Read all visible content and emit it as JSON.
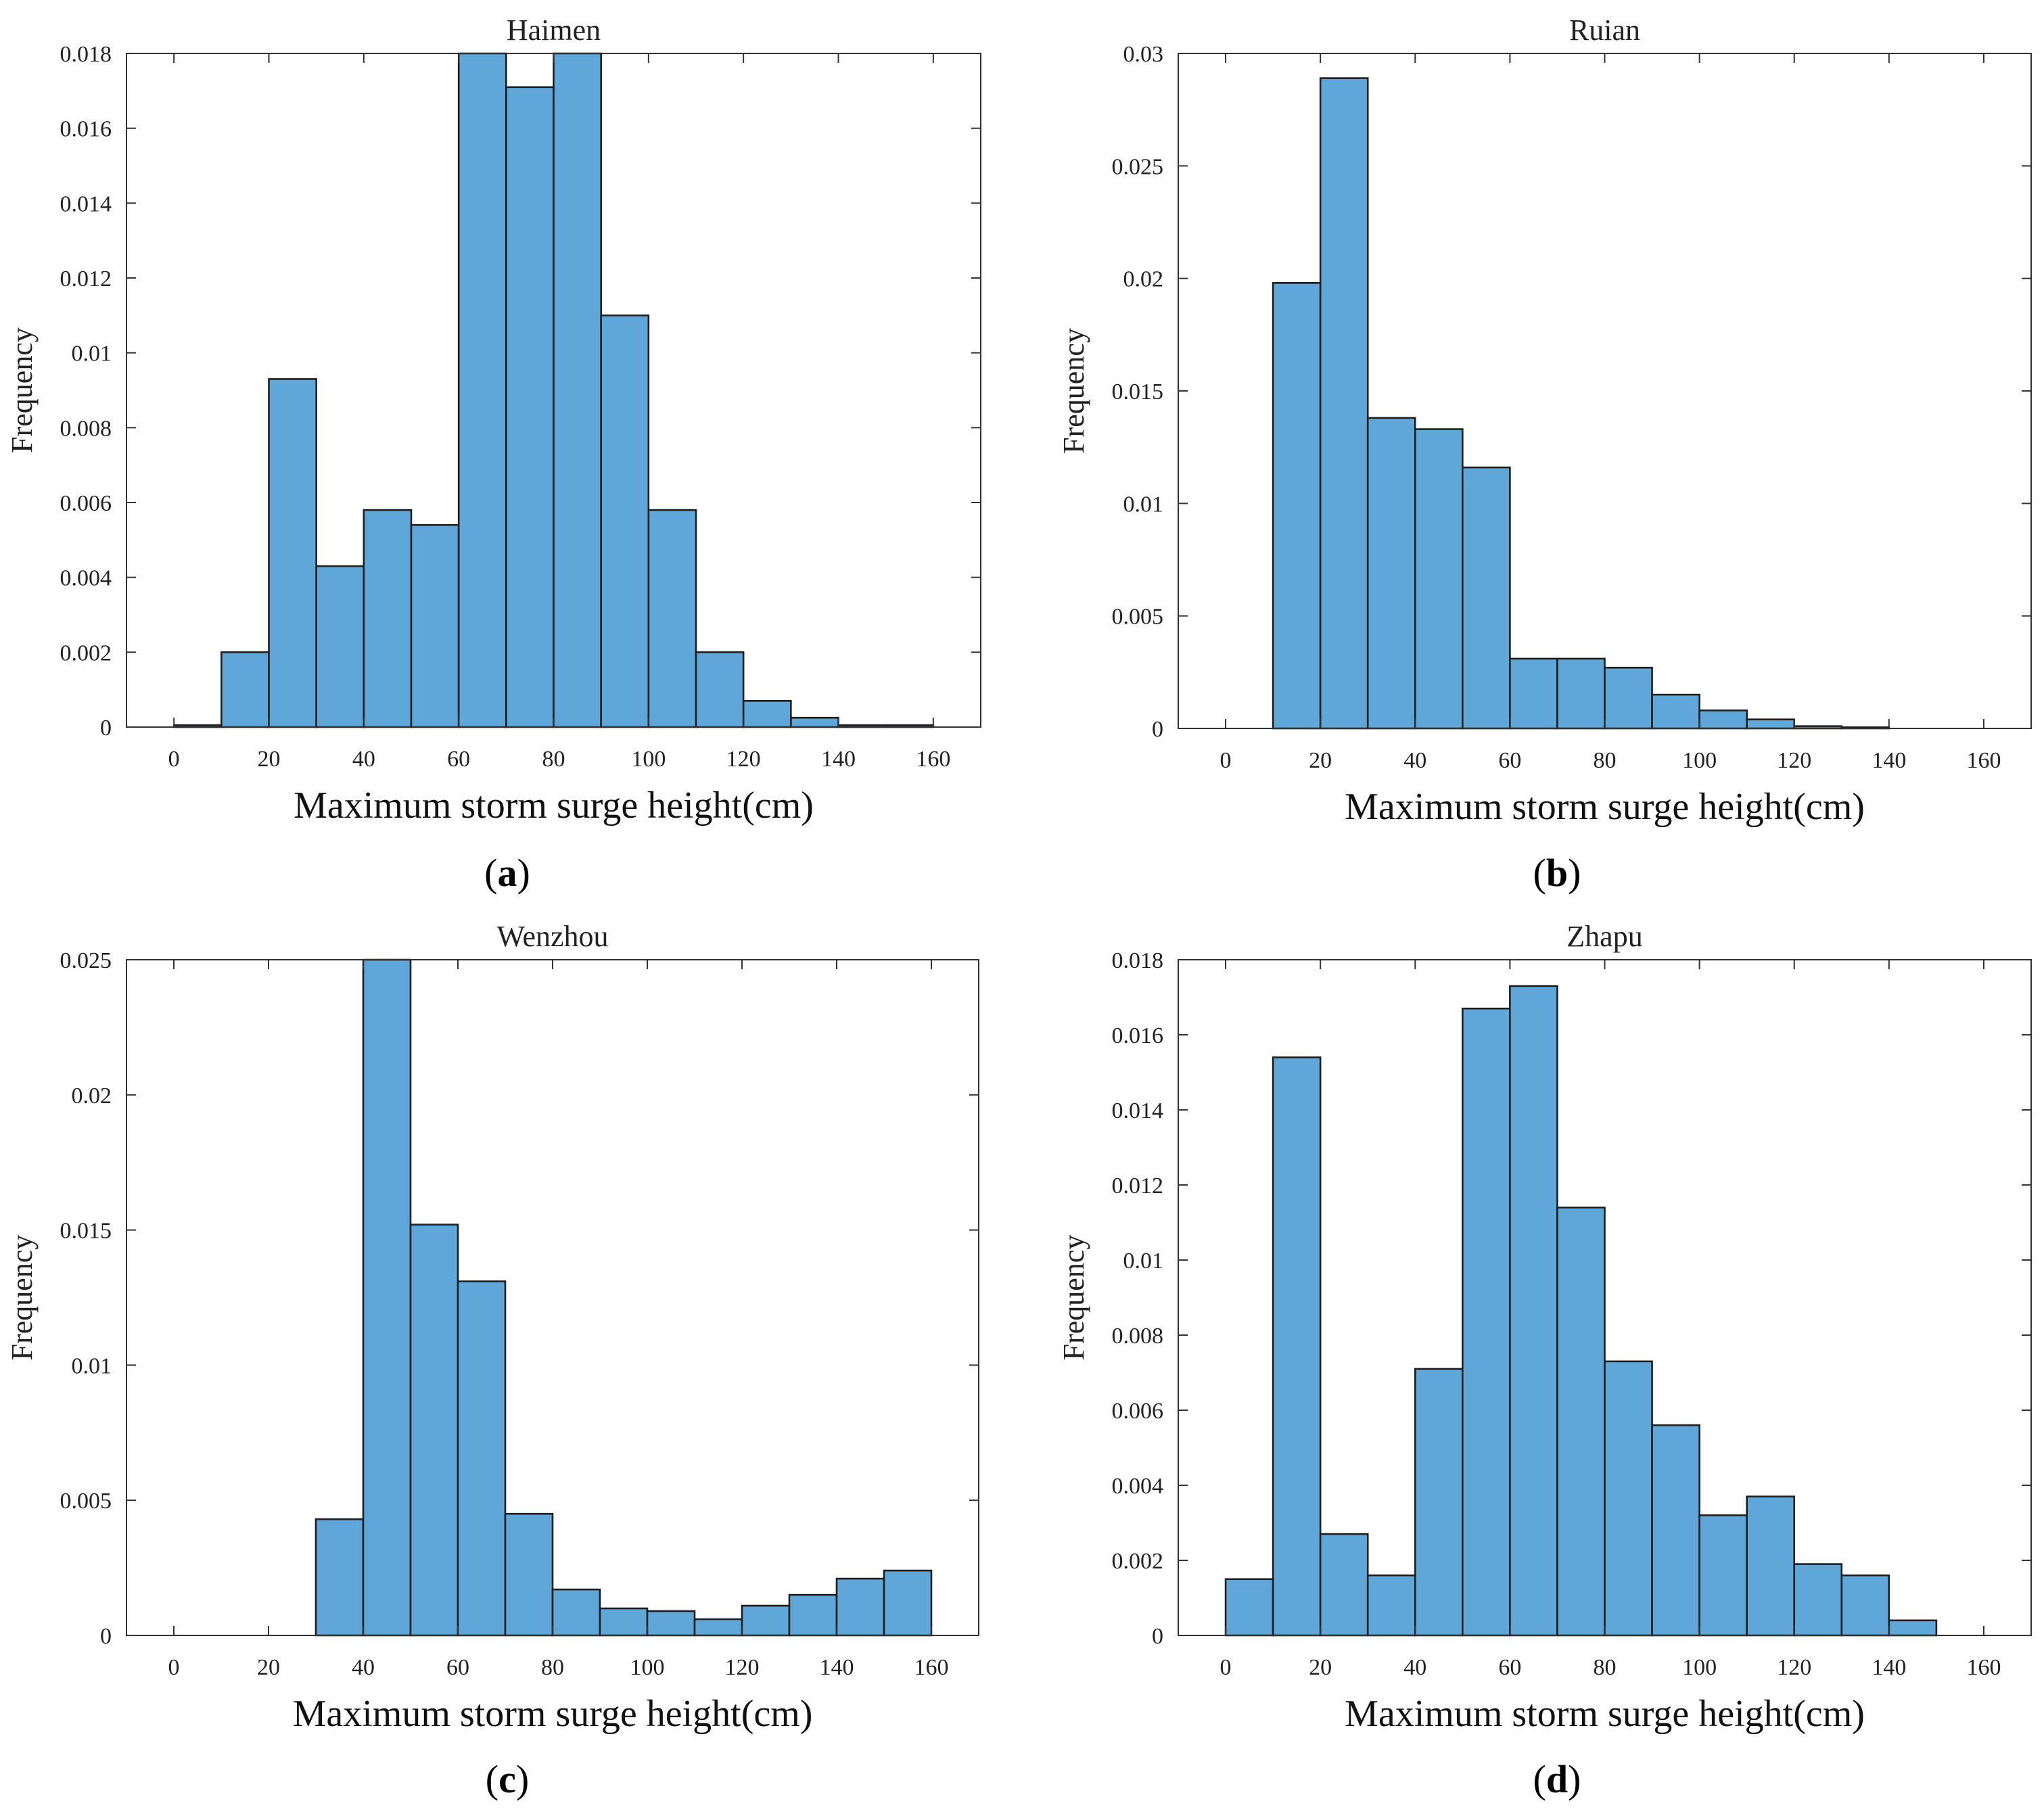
{
  "figure": {
    "bar_color": "#5fa7d8",
    "edge_color": "#1e1e1e",
    "axis_color": "#333333"
  },
  "chart_data": [
    {
      "type": "bar",
      "title": "Haimen",
      "caption_letter": "a",
      "xlabel": "Maximum storm surge height(cm)",
      "ylabel": "Frequency",
      "xlim": [
        -10,
        170
      ],
      "ylim": [
        0,
        0.018
      ],
      "xticks": [
        0,
        20,
        40,
        60,
        80,
        100,
        120,
        140,
        160
      ],
      "yticks": [
        0,
        0.002,
        0.004,
        0.006,
        0.008,
        0.01,
        0.012,
        0.014,
        0.016,
        0.018
      ],
      "ytick_labels": [
        "0",
        "0.002",
        "0.004",
        "0.006",
        "0.008",
        "0.01",
        "0.012",
        "0.014",
        "0.016",
        "0.018"
      ],
      "bin_edges": [
        0,
        10,
        20,
        30,
        40,
        50,
        60,
        70,
        80,
        90,
        100,
        110,
        120,
        130,
        140,
        150,
        160
      ],
      "values": [
        5e-05,
        0.002,
        0.0093,
        0.0043,
        0.0058,
        0.0054,
        0.018,
        0.0171,
        0.018,
        0.011,
        0.0058,
        0.002,
        0.0007,
        0.00025,
        5e-05,
        5e-05
      ]
    },
    {
      "type": "bar",
      "title": "Ruian",
      "caption_letter": "b",
      "xlabel": "Maximum storm surge height(cm)",
      "ylabel": "Frequency",
      "xlim": [
        -10,
        170
      ],
      "ylim": [
        0,
        0.03
      ],
      "xticks": [
        0,
        20,
        40,
        60,
        80,
        100,
        120,
        140,
        160
      ],
      "yticks": [
        0,
        0.005,
        0.01,
        0.015,
        0.02,
        0.025,
        0.03
      ],
      "ytick_labels": [
        "0",
        "0.005",
        "0.01",
        "0.015",
        "0.02",
        "0.025",
        "0.03"
      ],
      "bin_edges": [
        10,
        20,
        30,
        40,
        50,
        60,
        70,
        80,
        90,
        100,
        110,
        120,
        130,
        140
      ],
      "values": [
        0.0198,
        0.0289,
        0.0138,
        0.0133,
        0.0116,
        0.0031,
        0.0031,
        0.0027,
        0.0015,
        0.0008,
        0.0004,
        0.0001,
        5e-05
      ]
    },
    {
      "type": "bar",
      "title": "Wenzhou",
      "caption_letter": "c",
      "xlabel": "Maximum storm surge height(cm)",
      "ylabel": "Frequency",
      "xlim": [
        -10,
        170
      ],
      "ylim": [
        0,
        0.025
      ],
      "xticks": [
        0,
        20,
        40,
        60,
        80,
        100,
        120,
        140,
        160
      ],
      "yticks": [
        0,
        0.005,
        0.01,
        0.015,
        0.02,
        0.025
      ],
      "ytick_labels": [
        "0",
        "0.005",
        "0.01",
        "0.015",
        "0.02",
        "0.025"
      ],
      "bin_edges": [
        30,
        40,
        50,
        60,
        70,
        80,
        90,
        100,
        110,
        120,
        130,
        140,
        150,
        160
      ],
      "values": [
        0.0043,
        0.025,
        0.0152,
        0.0131,
        0.0045,
        0.0017,
        0.001,
        0.0009,
        0.0006,
        0.0011,
        0.0015,
        0.0021,
        0.0024
      ]
    },
    {
      "type": "bar",
      "title": "Zhapu",
      "caption_letter": "d",
      "xlabel": "Maximum storm surge height(cm)",
      "ylabel": "Frequency",
      "xlim": [
        -10,
        170
      ],
      "ylim": [
        0,
        0.018
      ],
      "xticks": [
        0,
        20,
        40,
        60,
        80,
        100,
        120,
        140,
        160
      ],
      "yticks": [
        0,
        0.002,
        0.004,
        0.006,
        0.008,
        0.01,
        0.012,
        0.014,
        0.016,
        0.018
      ],
      "ytick_labels": [
        "0",
        "0.002",
        "0.004",
        "0.006",
        "0.008",
        "0.01",
        "0.012",
        "0.014",
        "0.016",
        "0.018"
      ],
      "bin_edges": [
        0,
        10,
        20,
        30,
        40,
        50,
        60,
        70,
        80,
        90,
        100,
        110,
        120,
        130,
        140,
        150
      ],
      "values": [
        0.0015,
        0.0154,
        0.0027,
        0.0016,
        0.0071,
        0.0167,
        0.0173,
        0.0114,
        0.0073,
        0.0056,
        0.0032,
        0.0037,
        0.0019,
        0.0016,
        0.0004
      ]
    }
  ]
}
